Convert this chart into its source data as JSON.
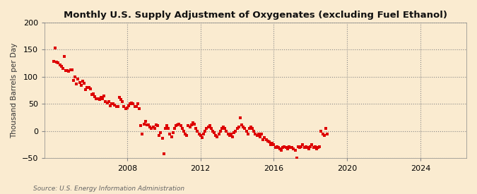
{
  "title": "Monthly U.S. Supply Adjustment of Oxygenates (excluding Fuel Ethanol)",
  "ylabel": "Thousand Barrels per Day",
  "source": "Source: U.S. Energy Information Administration",
  "background_color": "#faebd0",
  "marker_color": "#dd0000",
  "xlim_min": 2003.5,
  "xlim_max": 2026.5,
  "ylim_min": -50,
  "ylim_max": 200,
  "yticks": [
    -50,
    0,
    50,
    100,
    150,
    200
  ],
  "xticks": [
    2008,
    2012,
    2016,
    2020,
    2024
  ],
  "data_points": [
    [
      2004.0,
      128
    ],
    [
      2004.08,
      153
    ],
    [
      2004.17,
      127
    ],
    [
      2004.25,
      126
    ],
    [
      2004.33,
      122
    ],
    [
      2004.42,
      120
    ],
    [
      2004.5,
      115
    ],
    [
      2004.58,
      138
    ],
    [
      2004.67,
      112
    ],
    [
      2004.75,
      112
    ],
    [
      2004.83,
      110
    ],
    [
      2004.92,
      113
    ],
    [
      2005.0,
      113
    ],
    [
      2005.08,
      94
    ],
    [
      2005.17,
      100
    ],
    [
      2005.25,
      87
    ],
    [
      2005.33,
      96
    ],
    [
      2005.42,
      90
    ],
    [
      2005.5,
      84
    ],
    [
      2005.58,
      92
    ],
    [
      2005.67,
      88
    ],
    [
      2005.75,
      76
    ],
    [
      2005.83,
      80
    ],
    [
      2005.92,
      80
    ],
    [
      2006.0,
      78
    ],
    [
      2006.08,
      68
    ],
    [
      2006.17,
      69
    ],
    [
      2006.25,
      64
    ],
    [
      2006.33,
      60
    ],
    [
      2006.42,
      60
    ],
    [
      2006.5,
      58
    ],
    [
      2006.58,
      62
    ],
    [
      2006.67,
      60
    ],
    [
      2006.75,
      65
    ],
    [
      2006.83,
      55
    ],
    [
      2006.92,
      52
    ],
    [
      2007.0,
      55
    ],
    [
      2007.08,
      47
    ],
    [
      2007.17,
      50
    ],
    [
      2007.25,
      50
    ],
    [
      2007.33,
      48
    ],
    [
      2007.42,
      46
    ],
    [
      2007.5,
      46
    ],
    [
      2007.58,
      62
    ],
    [
      2007.67,
      58
    ],
    [
      2007.75,
      55
    ],
    [
      2007.83,
      45
    ],
    [
      2007.92,
      42
    ],
    [
      2008.0,
      43
    ],
    [
      2008.08,
      47
    ],
    [
      2008.17,
      50
    ],
    [
      2008.25,
      52
    ],
    [
      2008.33,
      50
    ],
    [
      2008.42,
      45
    ],
    [
      2008.5,
      45
    ],
    [
      2008.58,
      50
    ],
    [
      2008.67,
      42
    ],
    [
      2008.75,
      10
    ],
    [
      2008.83,
      -5
    ],
    [
      2008.92,
      13
    ],
    [
      2009.0,
      18
    ],
    [
      2009.08,
      12
    ],
    [
      2009.17,
      12
    ],
    [
      2009.25,
      8
    ],
    [
      2009.33,
      5
    ],
    [
      2009.42,
      8
    ],
    [
      2009.5,
      5
    ],
    [
      2009.58,
      12
    ],
    [
      2009.67,
      10
    ],
    [
      2009.75,
      -8
    ],
    [
      2009.83,
      -2
    ],
    [
      2009.92,
      -13
    ],
    [
      2010.0,
      -42
    ],
    [
      2010.08,
      5
    ],
    [
      2010.17,
      10
    ],
    [
      2010.25,
      5
    ],
    [
      2010.33,
      -5
    ],
    [
      2010.42,
      -10
    ],
    [
      2010.5,
      -2
    ],
    [
      2010.58,
      5
    ],
    [
      2010.67,
      10
    ],
    [
      2010.75,
      12
    ],
    [
      2010.83,
      13
    ],
    [
      2010.92,
      10
    ],
    [
      2011.0,
      5
    ],
    [
      2011.08,
      0
    ],
    [
      2011.17,
      -5
    ],
    [
      2011.25,
      -8
    ],
    [
      2011.33,
      10
    ],
    [
      2011.42,
      8
    ],
    [
      2011.5,
      12
    ],
    [
      2011.58,
      15
    ],
    [
      2011.67,
      13
    ],
    [
      2011.75,
      5
    ],
    [
      2011.83,
      0
    ],
    [
      2011.92,
      -5
    ],
    [
      2012.0,
      -8
    ],
    [
      2012.08,
      -12
    ],
    [
      2012.17,
      -5
    ],
    [
      2012.25,
      0
    ],
    [
      2012.33,
      5
    ],
    [
      2012.42,
      8
    ],
    [
      2012.5,
      10
    ],
    [
      2012.58,
      5
    ],
    [
      2012.67,
      0
    ],
    [
      2012.75,
      -2
    ],
    [
      2012.83,
      -8
    ],
    [
      2012.92,
      -10
    ],
    [
      2013.0,
      -5
    ],
    [
      2013.08,
      0
    ],
    [
      2013.17,
      5
    ],
    [
      2013.25,
      8
    ],
    [
      2013.33,
      5
    ],
    [
      2013.42,
      0
    ],
    [
      2013.5,
      -5
    ],
    [
      2013.58,
      -8
    ],
    [
      2013.67,
      -5
    ],
    [
      2013.75,
      -10
    ],
    [
      2013.83,
      -3
    ],
    [
      2013.92,
      0
    ],
    [
      2014.0,
      5
    ],
    [
      2014.08,
      8
    ],
    [
      2014.17,
      25
    ],
    [
      2014.25,
      12
    ],
    [
      2014.33,
      8
    ],
    [
      2014.42,
      5
    ],
    [
      2014.5,
      0
    ],
    [
      2014.58,
      -5
    ],
    [
      2014.67,
      5
    ],
    [
      2014.75,
      8
    ],
    [
      2014.83,
      5
    ],
    [
      2014.92,
      0
    ],
    [
      2015.0,
      -5
    ],
    [
      2015.08,
      -8
    ],
    [
      2015.17,
      -5
    ],
    [
      2015.25,
      -10
    ],
    [
      2015.33,
      -5
    ],
    [
      2015.42,
      -15
    ],
    [
      2015.5,
      -12
    ],
    [
      2015.58,
      -15
    ],
    [
      2015.67,
      -18
    ],
    [
      2015.75,
      -20
    ],
    [
      2015.83,
      -25
    ],
    [
      2015.92,
      -22
    ],
    [
      2016.0,
      -25
    ],
    [
      2016.08,
      -30
    ],
    [
      2016.17,
      -28
    ],
    [
      2016.25,
      -30
    ],
    [
      2016.33,
      -32
    ],
    [
      2016.42,
      -35
    ],
    [
      2016.5,
      -30
    ],
    [
      2016.58,
      -28
    ],
    [
      2016.67,
      -30
    ],
    [
      2016.75,
      -33
    ],
    [
      2016.83,
      -28
    ],
    [
      2016.92,
      -30
    ],
    [
      2017.0,
      -30
    ],
    [
      2017.08,
      -32
    ],
    [
      2017.17,
      -35
    ],
    [
      2017.25,
      -50
    ],
    [
      2017.33,
      -28
    ],
    [
      2017.42,
      -30
    ],
    [
      2017.5,
      -28
    ],
    [
      2017.58,
      -25
    ],
    [
      2017.67,
      -30
    ],
    [
      2017.75,
      -28
    ],
    [
      2017.83,
      -30
    ],
    [
      2017.92,
      -32
    ],
    [
      2018.0,
      -28
    ],
    [
      2018.08,
      -25
    ],
    [
      2018.17,
      -30
    ],
    [
      2018.25,
      -28
    ],
    [
      2018.33,
      -32
    ],
    [
      2018.42,
      -30
    ],
    [
      2018.5,
      -28
    ],
    [
      2018.58,
      0
    ],
    [
      2018.67,
      -5
    ],
    [
      2018.75,
      -8
    ],
    [
      2018.83,
      5
    ],
    [
      2018.92,
      -5
    ]
  ]
}
